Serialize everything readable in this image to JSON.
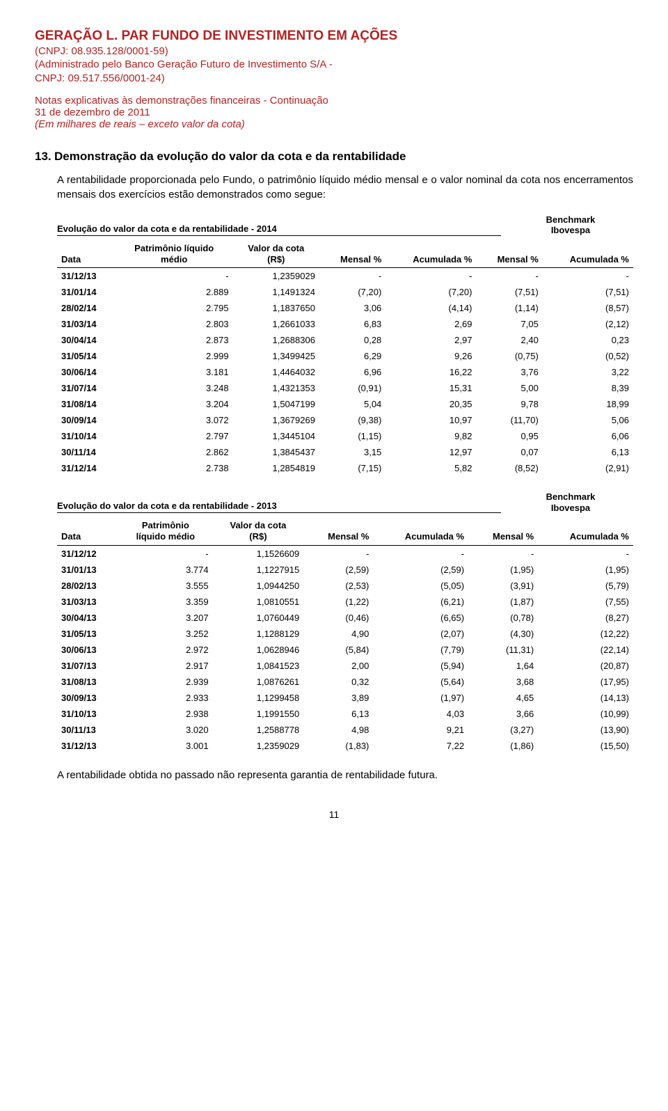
{
  "header": {
    "fund_name": "GERAÇÃO L. PAR FUNDO DE INVESTIMENTO EM AÇÕES",
    "cnpj_line": "(CNPJ: 08.935.128/0001-59)",
    "admin_line1": "(Administrado pelo Banco Geração Futuro de Investimento S/A -",
    "admin_line2": "CNPJ: 09.517.556/0001-24)",
    "notes1": "Notas explicativas às demonstrações financeiras - Continuação",
    "notes2": "31 de dezembro de 2011",
    "notes3": "(Em milhares de reais – exceto valor da cota)"
  },
  "section": {
    "number": "13.",
    "title": "Demonstração da evolução do valor da cota e da rentabilidade",
    "body": "A rentabilidade proporcionada pelo Fundo, o patrimônio líquido médio mensal e o valor nominal da cota nos encerramentos mensais dos exercícios estão demonstrados como segue:"
  },
  "benchmark": {
    "line1": "Benchmark",
    "line2": "Ibovespa"
  },
  "columns": {
    "data": "Data",
    "pl": "Patrimônio líquido\nmédio",
    "pl2": "Patrimônio\nlíquido médio",
    "cota": "Valor da cota\n(R$)",
    "mensal": "Mensal %",
    "acum": "Acumulada %"
  },
  "tables": [
    {
      "title": "Evolução do valor da cota e da rentabilidade - 2014",
      "rows": [
        [
          "31/12/13",
          "-",
          "1,2359029",
          "-",
          "-",
          "-",
          "-"
        ],
        [
          "31/01/14",
          "2.889",
          "1,1491324",
          "(7,20)",
          "(7,20)",
          "(7,51)",
          "(7,51)"
        ],
        [
          "28/02/14",
          "2.795",
          "1,1837650",
          "3,06",
          "(4,14)",
          "(1,14)",
          "(8,57)"
        ],
        [
          "31/03/14",
          "2.803",
          "1,2661033",
          "6,83",
          "2,69",
          "7,05",
          "(2,12)"
        ],
        [
          "30/04/14",
          "2.873",
          "1,2688306",
          "0,28",
          "2,97",
          "2,40",
          "0,23"
        ],
        [
          "31/05/14",
          "2.999",
          "1,3499425",
          "6,29",
          "9,26",
          "(0,75)",
          "(0,52)"
        ],
        [
          "30/06/14",
          "3.181",
          "1,4464032",
          "6,96",
          "16,22",
          "3,76",
          "3,22"
        ],
        [
          "31/07/14",
          "3.248",
          "1,4321353",
          "(0,91)",
          "15,31",
          "5,00",
          "8,39"
        ],
        [
          "31/08/14",
          "3.204",
          "1,5047199",
          "5,04",
          "20,35",
          "9,78",
          "18,99"
        ],
        [
          "30/09/14",
          "3.072",
          "1,3679269",
          "(9,38)",
          "10,97",
          "(11,70)",
          "5,06"
        ],
        [
          "31/10/14",
          "2.797",
          "1,3445104",
          "(1,15)",
          "9,82",
          "0,95",
          "6,06"
        ],
        [
          "30/11/14",
          "2.862",
          "1,3845437",
          "3,15",
          "12,97",
          "0,07",
          "6,13"
        ],
        [
          "31/12/14",
          "2.738",
          "1,2854819",
          "(7,15)",
          "5,82",
          "(8,52)",
          "(2,91)"
        ]
      ]
    },
    {
      "title": "Evolução do valor da cota e da rentabilidade - 2013",
      "rows": [
        [
          "31/12/12",
          "-",
          "1,1526609",
          "-",
          "-",
          "-",
          "-"
        ],
        [
          "31/01/13",
          "3.774",
          "1,1227915",
          "(2,59)",
          "(2,59)",
          "(1,95)",
          "(1,95)"
        ],
        [
          "28/02/13",
          "3.555",
          "1,0944250",
          "(2,53)",
          "(5,05)",
          "(3,91)",
          "(5,79)"
        ],
        [
          "31/03/13",
          "3.359",
          "1,0810551",
          "(1,22)",
          "(6,21)",
          "(1,87)",
          "(7,55)"
        ],
        [
          "30/04/13",
          "3.207",
          "1,0760449",
          "(0,46)",
          "(6,65)",
          "(0,78)",
          "(8,27)"
        ],
        [
          "31/05/13",
          "3.252",
          "1,1288129",
          "4,90",
          "(2,07)",
          "(4,30)",
          "(12,22)"
        ],
        [
          "30/06/13",
          "2.972",
          "1,0628946",
          "(5,84)",
          "(7,79)",
          "(11,31)",
          "(22,14)"
        ],
        [
          "31/07/13",
          "2.917",
          "1,0841523",
          "2,00",
          "(5,94)",
          "1,64",
          "(20,87)"
        ],
        [
          "31/08/13",
          "2.939",
          "1,0876261",
          "0,32",
          "(5,64)",
          "3,68",
          "(17,95)"
        ],
        [
          "30/09/13",
          "2.933",
          "1,1299458",
          "3,89",
          "(1,97)",
          "4,65",
          "(14,13)"
        ],
        [
          "31/10/13",
          "2.938",
          "1,1991550",
          "6,13",
          "4,03",
          "3,66",
          "(10,99)"
        ],
        [
          "30/11/13",
          "3.020",
          "1,2588778",
          "4,98",
          "9,21",
          "(3,27)",
          "(13,90)"
        ],
        [
          "31/12/13",
          "3.001",
          "1,2359029",
          "(1,83)",
          "7,22",
          "(1,86)",
          "(15,50)"
        ]
      ]
    }
  ],
  "footer": "A rentabilidade obtida no passado não representa garantia de rentabilidade futura.",
  "page_number": "11",
  "style": {
    "title_color": "#b22222",
    "text_color": "#000000",
    "background": "#ffffff",
    "font_family": "Arial",
    "body_fontsize": 15,
    "table_fontsize": 13
  }
}
